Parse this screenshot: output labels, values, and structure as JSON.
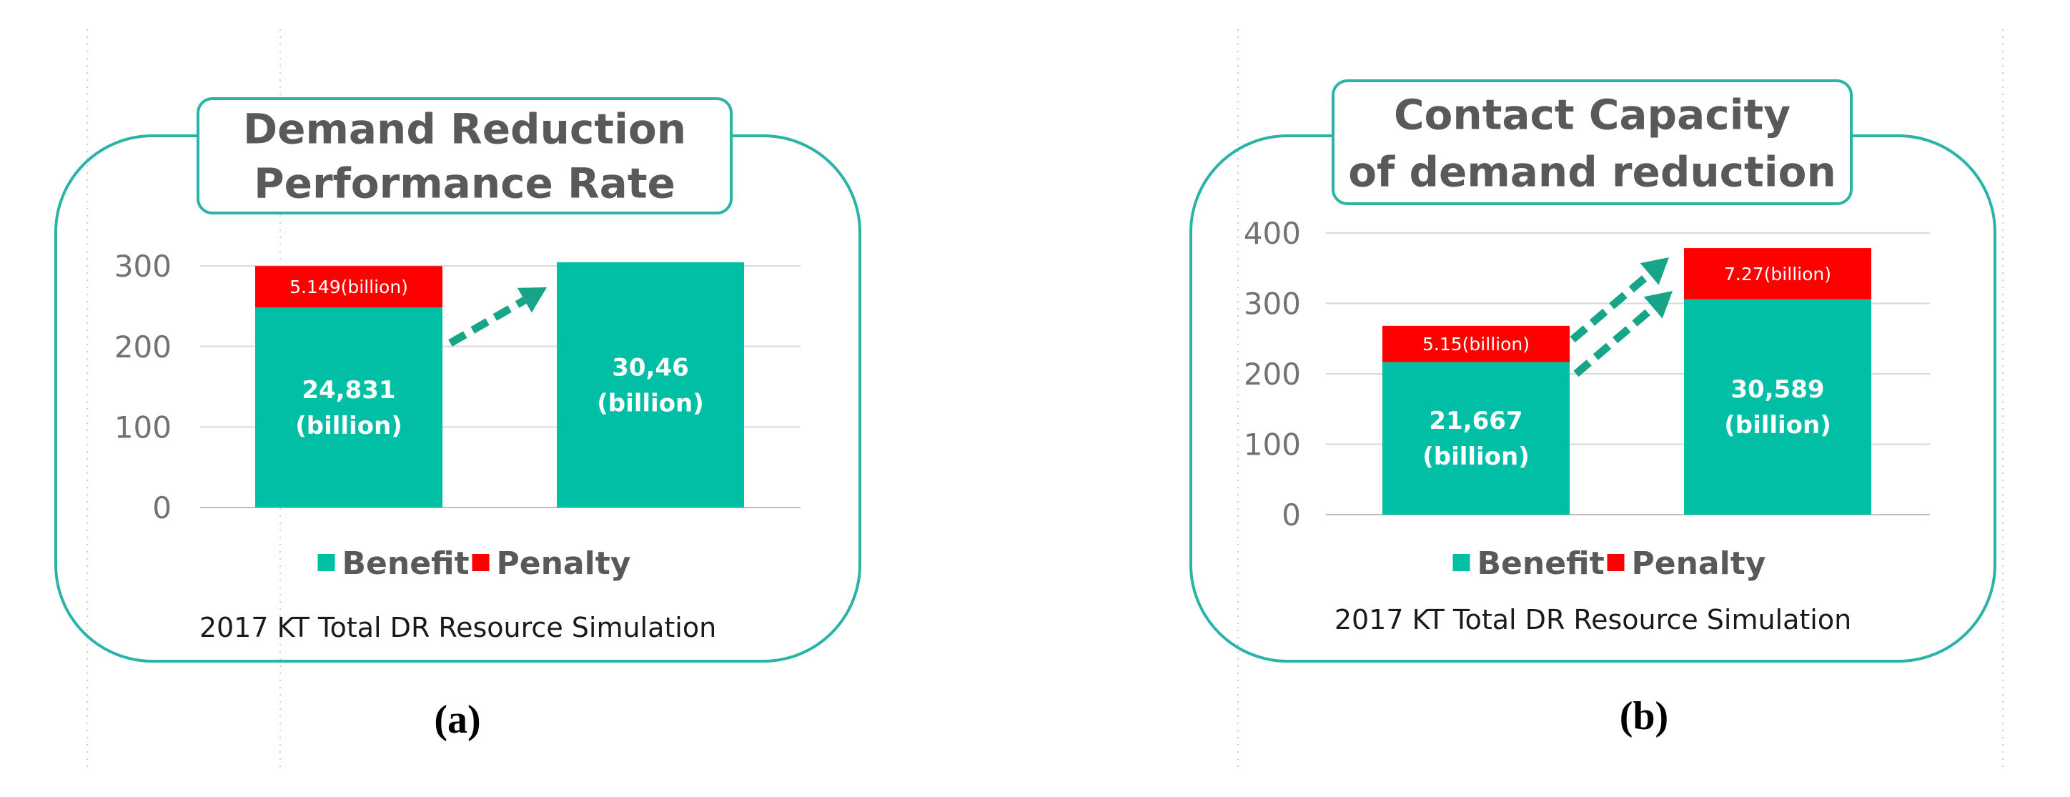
{
  "chart_data": [
    {
      "type": "bar",
      "stacked": true,
      "title": "Demand Reduction Performance Rate",
      "title_lines": [
        "Demand Reduction",
        "Performance Rate"
      ],
      "ylim": [
        0,
        300
      ],
      "yticks": [
        0,
        100,
        200,
        300
      ],
      "ytick_labels": [
        "0",
        "100",
        "200",
        "300"
      ],
      "grid": true,
      "legend_position": "bottom",
      "series": [
        {
          "name": "Benefit",
          "values": [
            248.31,
            304.6
          ],
          "labels": [
            [
              "24,831",
              "(billion)"
            ],
            [
              "30,46",
              "(billion)"
            ]
          ]
        },
        {
          "name": "Penalty",
          "values": [
            51.49,
            0
          ],
          "labels": [
            [
              "5.149(billion)"
            ],
            []
          ]
        }
      ],
      "annotations": [
        "increase-arrow"
      ],
      "caption": "2017 KT Total DR Resource Simulation",
      "panel_label": "(a)"
    },
    {
      "type": "bar",
      "stacked": true,
      "title": "Contact Capacity of demand reduction",
      "title_lines": [
        "Contact Capacity",
        "of demand reduction"
      ],
      "ylim": [
        0,
        400
      ],
      "yticks": [
        0,
        100,
        200,
        300,
        400
      ],
      "ytick_labels": [
        "0",
        "100",
        "200",
        "300",
        "400"
      ],
      "grid": true,
      "legend_position": "bottom",
      "series": [
        {
          "name": "Benefit",
          "values": [
            216.67,
            305.89
          ],
          "labels": [
            [
              "21,667",
              "(billion)"
            ],
            [
              "30,589",
              "(billion)"
            ]
          ]
        },
        {
          "name": "Penalty",
          "values": [
            51.5,
            72.7
          ],
          "labels": [
            [
              "5.15(billion)"
            ],
            [
              "7.27(billion)"
            ]
          ]
        }
      ],
      "annotations": [
        "increase-arrow",
        "increase-arrow"
      ],
      "caption": "2017 KT Total DR Resource Simulation",
      "panel_label": "(b)"
    }
  ],
  "colors": {
    "benefit": "#00bfa5",
    "penalty": "#ff0000",
    "frame": "#2ab3a6",
    "axis_text": "#767171",
    "title_text": "#595959",
    "caption_text": "#1a1a1a",
    "grid": "#d9d9d9"
  }
}
